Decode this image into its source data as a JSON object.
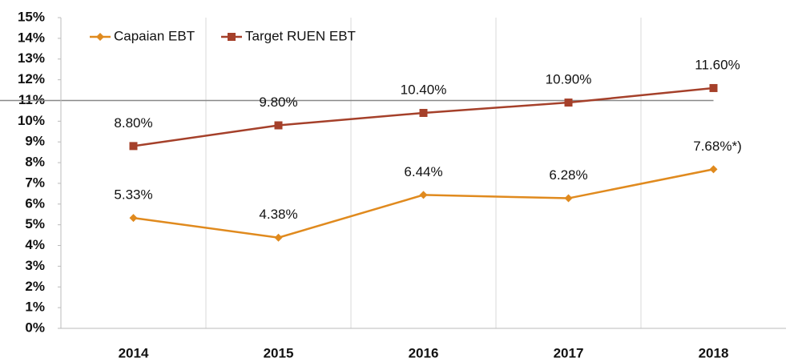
{
  "chart_data": {
    "type": "line",
    "categories": [
      "2014",
      "2015",
      "2016",
      "2017",
      "2018"
    ],
    "series": [
      {
        "name": "Capaian EBT",
        "color": "#e08a1e",
        "marker": "diamond",
        "values": [
          5.33,
          4.38,
          6.44,
          6.28,
          7.68
        ],
        "value_labels": [
          "5.33%",
          "4.38%",
          "6.44%",
          "6.28%",
          "7.68%*)"
        ]
      },
      {
        "name": "Target RUEN EBT",
        "color": "#a5402a",
        "marker": "square",
        "values": [
          8.8,
          9.8,
          10.4,
          10.9,
          11.6
        ],
        "value_labels": [
          "8.80%",
          "9.80%",
          "10.40%",
          "10.90%",
          "11.60%"
        ]
      }
    ],
    "ylim": [
      0,
      15
    ],
    "yticks": [
      {
        "value": 0,
        "label": "0%"
      },
      {
        "value": 1,
        "label": "1%"
      },
      {
        "value": 2,
        "label": "2%"
      },
      {
        "value": 3,
        "label": "3%"
      },
      {
        "value": 4,
        "label": "4%"
      },
      {
        "value": 5,
        "label": "5%"
      },
      {
        "value": 6,
        "label": "6%"
      },
      {
        "value": 7,
        "label": "7%"
      },
      {
        "value": 8,
        "label": "8%"
      },
      {
        "value": 9,
        "label": "9%"
      },
      {
        "value": 10,
        "label": "10%"
      },
      {
        "value": 11,
        "label": "11%"
      },
      {
        "value": 12,
        "label": "12%"
      },
      {
        "value": 13,
        "label": "13%"
      },
      {
        "value": 14,
        "label": "14%"
      },
      {
        "value": 15,
        "label": "15%"
      }
    ],
    "reference_line": 11,
    "legend": "top-left"
  }
}
